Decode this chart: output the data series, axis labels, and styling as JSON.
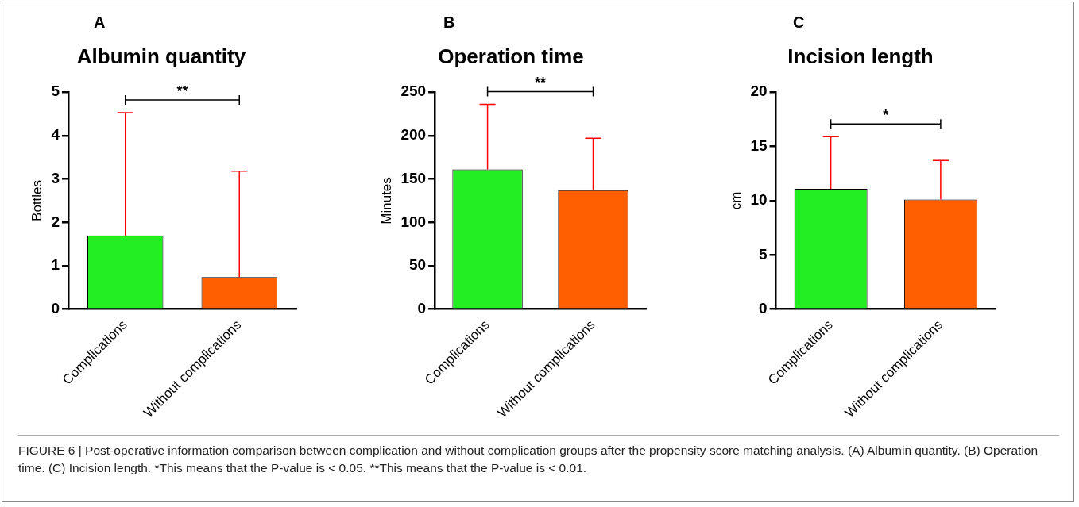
{
  "chart_data": [
    {
      "type": "bar",
      "title": "Albumin quantity",
      "ylabel": "Bottles",
      "categories": [
        "Complications",
        "Without complications"
      ],
      "values": [
        1.7,
        0.74
      ],
      "colors": [
        "#22ee22",
        "#ff5f00"
      ],
      "errors": [
        [
          1.7,
          4.53
        ],
        [
          0.74,
          3.18
        ]
      ],
      "ylim": [
        0,
        5
      ],
      "yticks": [
        0,
        1,
        2,
        3,
        4,
        5
      ],
      "grid": false,
      "legend": false,
      "annotations": [
        "A",
        "**",
        "FIGURE 6 | Post-operative information comparison between complication and without complication groups after the propensity score matching analysis. (A) Albumin quantity. (B) Operation time. (C) Incision length. *This means that the P-value is < 0.05. **This means that the P-value is < 0.01."
      ]
    },
    {
      "type": "bar",
      "title": "Operation time",
      "ylabel": "Minutes",
      "categories": [
        "Complications",
        "Without complications"
      ],
      "values": [
        161,
        137
      ],
      "colors": [
        "#22ee22",
        "#ff5f00"
      ],
      "errors": [
        [
          161,
          236
        ],
        [
          137,
          197
        ]
      ],
      "ylim": [
        0,
        250
      ],
      "yticks": [
        0,
        50,
        100,
        150,
        200,
        250
      ],
      "grid": false,
      "legend": false,
      "annotations": [
        "B",
        "**"
      ]
    },
    {
      "type": "bar",
      "title": "Incision length",
      "ylabel": "cm",
      "categories": [
        "Complications",
        "Without complications"
      ],
      "values": [
        11.1,
        10.1
      ],
      "colors": [
        "#22ee22",
        "#ff5f00"
      ],
      "errors": [
        [
          11.1,
          15.9
        ],
        [
          10.1,
          13.7
        ]
      ],
      "ylim": [
        0,
        20
      ],
      "yticks": [
        0,
        5,
        10,
        15,
        20
      ],
      "grid": false,
      "legend": false,
      "annotations": [
        "C",
        "*"
      ]
    }
  ]
}
